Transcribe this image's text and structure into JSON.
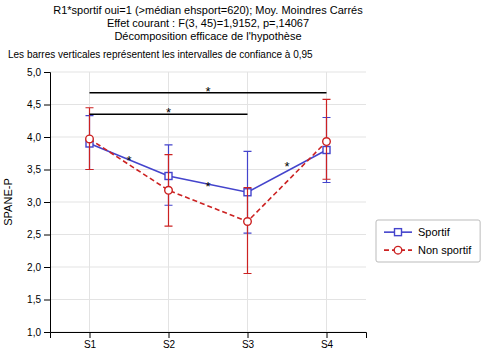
{
  "chart_data": {
    "type": "line",
    "title": [
      "R1*sportif oui=1 (>médian ehsport=620); Moy. Moindres Carrés",
      "Effet courant : F(3, 45)=1,9152, p=,14067",
      "Décomposition efficace de l'hypothèse"
    ],
    "subtitle": "Les barres verticales représentent les intervalles de confiance à 0,95",
    "categories": [
      "S1",
      "S2",
      "S3",
      "S4"
    ],
    "ylabel": "SPANE-P",
    "ylim": [
      1.0,
      5.0
    ],
    "yticks": [
      {
        "value": 1.0,
        "label": "1,0"
      },
      {
        "value": 1.5,
        "label": "1,5"
      },
      {
        "value": 2.0,
        "label": "2,0"
      },
      {
        "value": 2.5,
        "label": "2,5"
      },
      {
        "value": 3.0,
        "label": "3,0"
      },
      {
        "value": 3.5,
        "label": "3,5"
      },
      {
        "value": 4.0,
        "label": "4,0"
      },
      {
        "value": 4.5,
        "label": "4,5"
      },
      {
        "value": 5.0,
        "label": "5,0"
      }
    ],
    "grid": true,
    "legend": "right",
    "series": [
      {
        "name": "Sportif",
        "color": "#4444cc",
        "marker": "square",
        "line_style": "solid",
        "values": [
          3.9,
          3.4,
          3.15,
          3.8
        ],
        "ci_lower": [
          3.5,
          2.95,
          2.52,
          3.3
        ],
        "ci_upper": [
          4.33,
          3.88,
          3.78,
          4.3
        ]
      },
      {
        "name": "Non sportif",
        "color": "#cc2222",
        "marker": "circle",
        "line_style": "dashed",
        "values": [
          3.97,
          3.18,
          2.7,
          3.93
        ],
        "ci_lower": [
          3.5,
          2.63,
          1.9,
          3.35
        ],
        "ci_upper": [
          4.45,
          3.73,
          3.22,
          4.58
        ]
      }
    ],
    "significance_bars": [
      {
        "x1": 1,
        "x2": 3,
        "y": 4.35,
        "text": "*",
        "text_x": 2.0,
        "text_y": 4.4
      },
      {
        "x1": 1,
        "x2": 4,
        "y": 4.68,
        "text": "*",
        "text_x": 2.5,
        "text_y": 4.73
      }
    ],
    "annotations": [
      {
        "text": "*",
        "x": 1.5,
        "y": 3.65
      },
      {
        "text": "*",
        "x": 2.5,
        "y": 3.25
      },
      {
        "text": "*",
        "x": 3.5,
        "y": 3.55
      }
    ]
  }
}
